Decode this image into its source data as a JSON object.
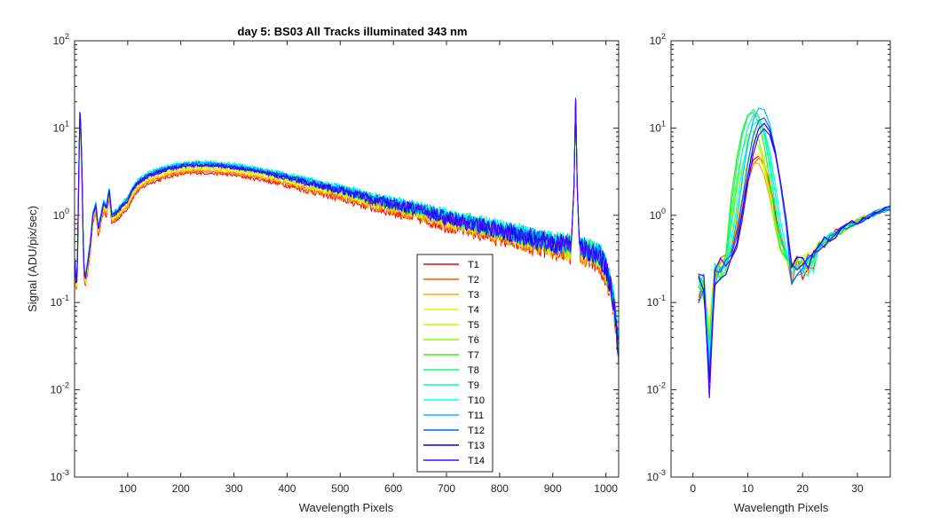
{
  "chart_data": [
    {
      "type": "line",
      "title": "day 5: BS03   All Tracks illuminated   343 nm",
      "xlabel": "Wavelength Pixels",
      "ylabel": "Signal (ADU/pix/sec)",
      "xlim": [
        0,
        1024
      ],
      "ylim": [
        0.001,
        100
      ],
      "yscale": "log",
      "x_ticks": [
        100,
        200,
        300,
        400,
        500,
        600,
        700,
        800,
        900,
        1000
      ],
      "y_ticks": [
        {
          "base": "10",
          "exp": "-3",
          "value": 0.001
        },
        {
          "base": "10",
          "exp": "-2",
          "value": 0.01
        },
        {
          "base": "10",
          "exp": "-1",
          "value": 0.1
        },
        {
          "base": "10",
          "exp": "0",
          "value": 1
        },
        {
          "base": "10",
          "exp": "1",
          "value": 10
        },
        {
          "base": "10",
          "exp": "2",
          "value": 100
        }
      ],
      "legend_position": "lower-right",
      "series": [
        {
          "name": "T1",
          "color": "#ff0000",
          "scale": 0.8
        },
        {
          "name": "T2",
          "color": "#ff5500",
          "scale": 0.84
        },
        {
          "name": "T3",
          "color": "#ffaa00",
          "scale": 0.86
        },
        {
          "name": "T4",
          "color": "#f2f200",
          "scale": 0.9
        },
        {
          "name": "T5",
          "color": "#bfff00",
          "scale": 0.94
        },
        {
          "name": "T6",
          "color": "#80ff00",
          "scale": 0.97
        },
        {
          "name": "T7",
          "color": "#33ee22",
          "scale": 1.0
        },
        {
          "name": "T8",
          "color": "#00ff80",
          "scale": 1.03
        },
        {
          "name": "T9",
          "color": "#00ffbf",
          "scale": 1.05
        },
        {
          "name": "T10",
          "color": "#00ffff",
          "scale": 1.07
        },
        {
          "name": "T11",
          "color": "#00bfff",
          "scale": 1.04
        },
        {
          "name": "T12",
          "color": "#0066ff",
          "scale": 1.01
        },
        {
          "name": "T13",
          "color": "#0000ff",
          "scale": 0.99
        },
        {
          "name": "T14",
          "color": "#5500ff",
          "scale": 0.97
        }
      ],
      "profile": [
        [
          1,
          0.3
        ],
        [
          3,
          0.15
        ],
        [
          5,
          0.2
        ],
        [
          8,
          3.5
        ],
        [
          10,
          15
        ],
        [
          12,
          10
        ],
        [
          14,
          3
        ],
        [
          17,
          0.3
        ],
        [
          20,
          0.18
        ],
        [
          25,
          0.3
        ],
        [
          30,
          0.5
        ],
        [
          34,
          1.0
        ],
        [
          40,
          1.3
        ],
        [
          45,
          0.7
        ],
        [
          50,
          1.0
        ],
        [
          55,
          1.4
        ],
        [
          60,
          1.2
        ],
        [
          65,
          2.0
        ],
        [
          70,
          1.0
        ],
        [
          80,
          1.1
        ],
        [
          90,
          1.3
        ],
        [
          100,
          1.5
        ],
        [
          110,
          2.0
        ],
        [
          120,
          2.4
        ],
        [
          140,
          2.9
        ],
        [
          160,
          3.2
        ],
        [
          180,
          3.5
        ],
        [
          200,
          3.7
        ],
        [
          230,
          3.85
        ],
        [
          260,
          3.8
        ],
        [
          300,
          3.6
        ],
        [
          350,
          3.2
        ],
        [
          400,
          2.75
        ],
        [
          450,
          2.3
        ],
        [
          500,
          1.95
        ],
        [
          550,
          1.6
        ],
        [
          600,
          1.35
        ],
        [
          650,
          1.15
        ],
        [
          700,
          0.95
        ],
        [
          750,
          0.8
        ],
        [
          800,
          0.68
        ],
        [
          850,
          0.57
        ],
        [
          900,
          0.48
        ],
        [
          935,
          0.45
        ],
        [
          940,
          2.0
        ],
        [
          943,
          20
        ],
        [
          946,
          2.0
        ],
        [
          950,
          0.42
        ],
        [
          970,
          0.4
        ],
        [
          990,
          0.33
        ],
        [
          1000,
          0.25
        ],
        [
          1010,
          0.15
        ],
        [
          1015,
          0.1
        ],
        [
          1020,
          0.05
        ],
        [
          1024,
          0.03
        ]
      ]
    },
    {
      "type": "line",
      "title": "",
      "xlabel": "Wavelength Pixels",
      "ylabel": "",
      "xlim": [
        -4,
        36
      ],
      "ylim": [
        0.001,
        100
      ],
      "yscale": "log",
      "x_ticks": [
        0,
        10,
        20,
        30
      ],
      "y_ticks": [
        {
          "base": "10",
          "exp": "-3",
          "value": 0.001
        },
        {
          "base": "10",
          "exp": "-2",
          "value": 0.01
        },
        {
          "base": "10",
          "exp": "-1",
          "value": 0.1
        },
        {
          "base": "10",
          "exp": "0",
          "value": 1
        },
        {
          "base": "10",
          "exp": "1",
          "value": 10
        },
        {
          "base": "10",
          "exp": "2",
          "value": 100
        }
      ],
      "series_note": "same 14 tracks T1–T14 as left panel, zoomed view",
      "tracks": [
        {
          "color": "#ff0000",
          "peak": 4.5,
          "center": 11.8,
          "dip": 0.025
        },
        {
          "color": "#ff5500",
          "peak": 4.2,
          "center": 12.0,
          "dip": 0.04
        },
        {
          "color": "#ffaa00",
          "peak": 3.8,
          "center": 11.5,
          "dip": 0.05
        },
        {
          "color": "#f2f200",
          "peak": 5.0,
          "center": 11.3,
          "dip": 0.06
        },
        {
          "color": "#bfff00",
          "peak": 7.0,
          "center": 11.0,
          "dip": 0.05
        },
        {
          "color": "#80ff00",
          "peak": 9.0,
          "center": 10.8,
          "dip": 0.04
        },
        {
          "color": "#33ee22",
          "peak": 15.0,
          "center": 10.7,
          "dip": 0.035
        },
        {
          "color": "#00ff80",
          "peak": 16.0,
          "center": 11.0,
          "dip": 0.03
        },
        {
          "color": "#00ffbf",
          "peak": 14.0,
          "center": 11.4,
          "dip": 0.025
        },
        {
          "color": "#00ffff",
          "peak": 12.0,
          "center": 11.8,
          "dip": 0.022
        },
        {
          "color": "#00bfff",
          "peak": 17.0,
          "center": 12.4,
          "dip": 0.02
        },
        {
          "color": "#0066ff",
          "peak": 13.0,
          "center": 12.7,
          "dip": 0.015
        },
        {
          "color": "#0000ff",
          "peak": 11.0,
          "center": 12.9,
          "dip": 0.012
        },
        {
          "color": "#5500ff",
          "peak": 9.5,
          "center": 13.0,
          "dip": 0.008
        }
      ]
    }
  ]
}
